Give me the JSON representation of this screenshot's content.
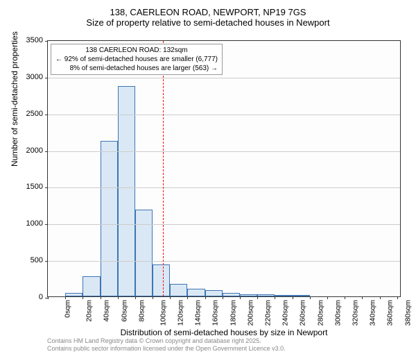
{
  "title": {
    "line1": "138, CAERLEON ROAD, NEWPORT, NP19 7GS",
    "line2": "Size of property relative to semi-detached houses in Newport"
  },
  "annotation": {
    "line1": "138 CAERLEON ROAD: 132sqm",
    "line2": "← 92% of semi-detached houses are smaller (6,777)",
    "line3": "8% of semi-detached houses are larger (563) →"
  },
  "chart": {
    "type": "histogram",
    "bar_fill": "#dae8f5",
    "bar_edge": "#3d75b2",
    "background_color": "#fdfdfd",
    "grid_color": "#cccccc",
    "vline_color": "#ff0000",
    "vline_x": 132,
    "xlim": [
      0,
      405
    ],
    "ylim": [
      0,
      3500
    ],
    "ytick_step": 500,
    "xtick_step": 20,
    "bins": [
      {
        "x": 0,
        "count": 0
      },
      {
        "x": 20,
        "count": 50
      },
      {
        "x": 40,
        "count": 270
      },
      {
        "x": 60,
        "count": 2120
      },
      {
        "x": 80,
        "count": 2870
      },
      {
        "x": 100,
        "count": 1180
      },
      {
        "x": 120,
        "count": 440
      },
      {
        "x": 140,
        "count": 170
      },
      {
        "x": 160,
        "count": 100
      },
      {
        "x": 180,
        "count": 90
      },
      {
        "x": 200,
        "count": 50
      },
      {
        "x": 220,
        "count": 30
      },
      {
        "x": 240,
        "count": 25
      },
      {
        "x": 260,
        "count": 10
      },
      {
        "x": 280,
        "count": 5
      },
      {
        "x": 300,
        "count": 0
      },
      {
        "x": 320,
        "count": 0
      },
      {
        "x": 340,
        "count": 0
      },
      {
        "x": 360,
        "count": 0
      },
      {
        "x": 380,
        "count": 0
      }
    ],
    "ylabel": "Number of semi-detached properties",
    "xlabel": "Distribution of semi-detached houses by size in Newport",
    "label_fontsize": 12,
    "tick_fontsize": 11,
    "x_tick_suffix": "sqm"
  },
  "footer": {
    "line1": "Contains HM Land Registry data © Crown copyright and database right 2025.",
    "line2": "Contains public sector information licensed under the Open Government Licence v3.0."
  }
}
